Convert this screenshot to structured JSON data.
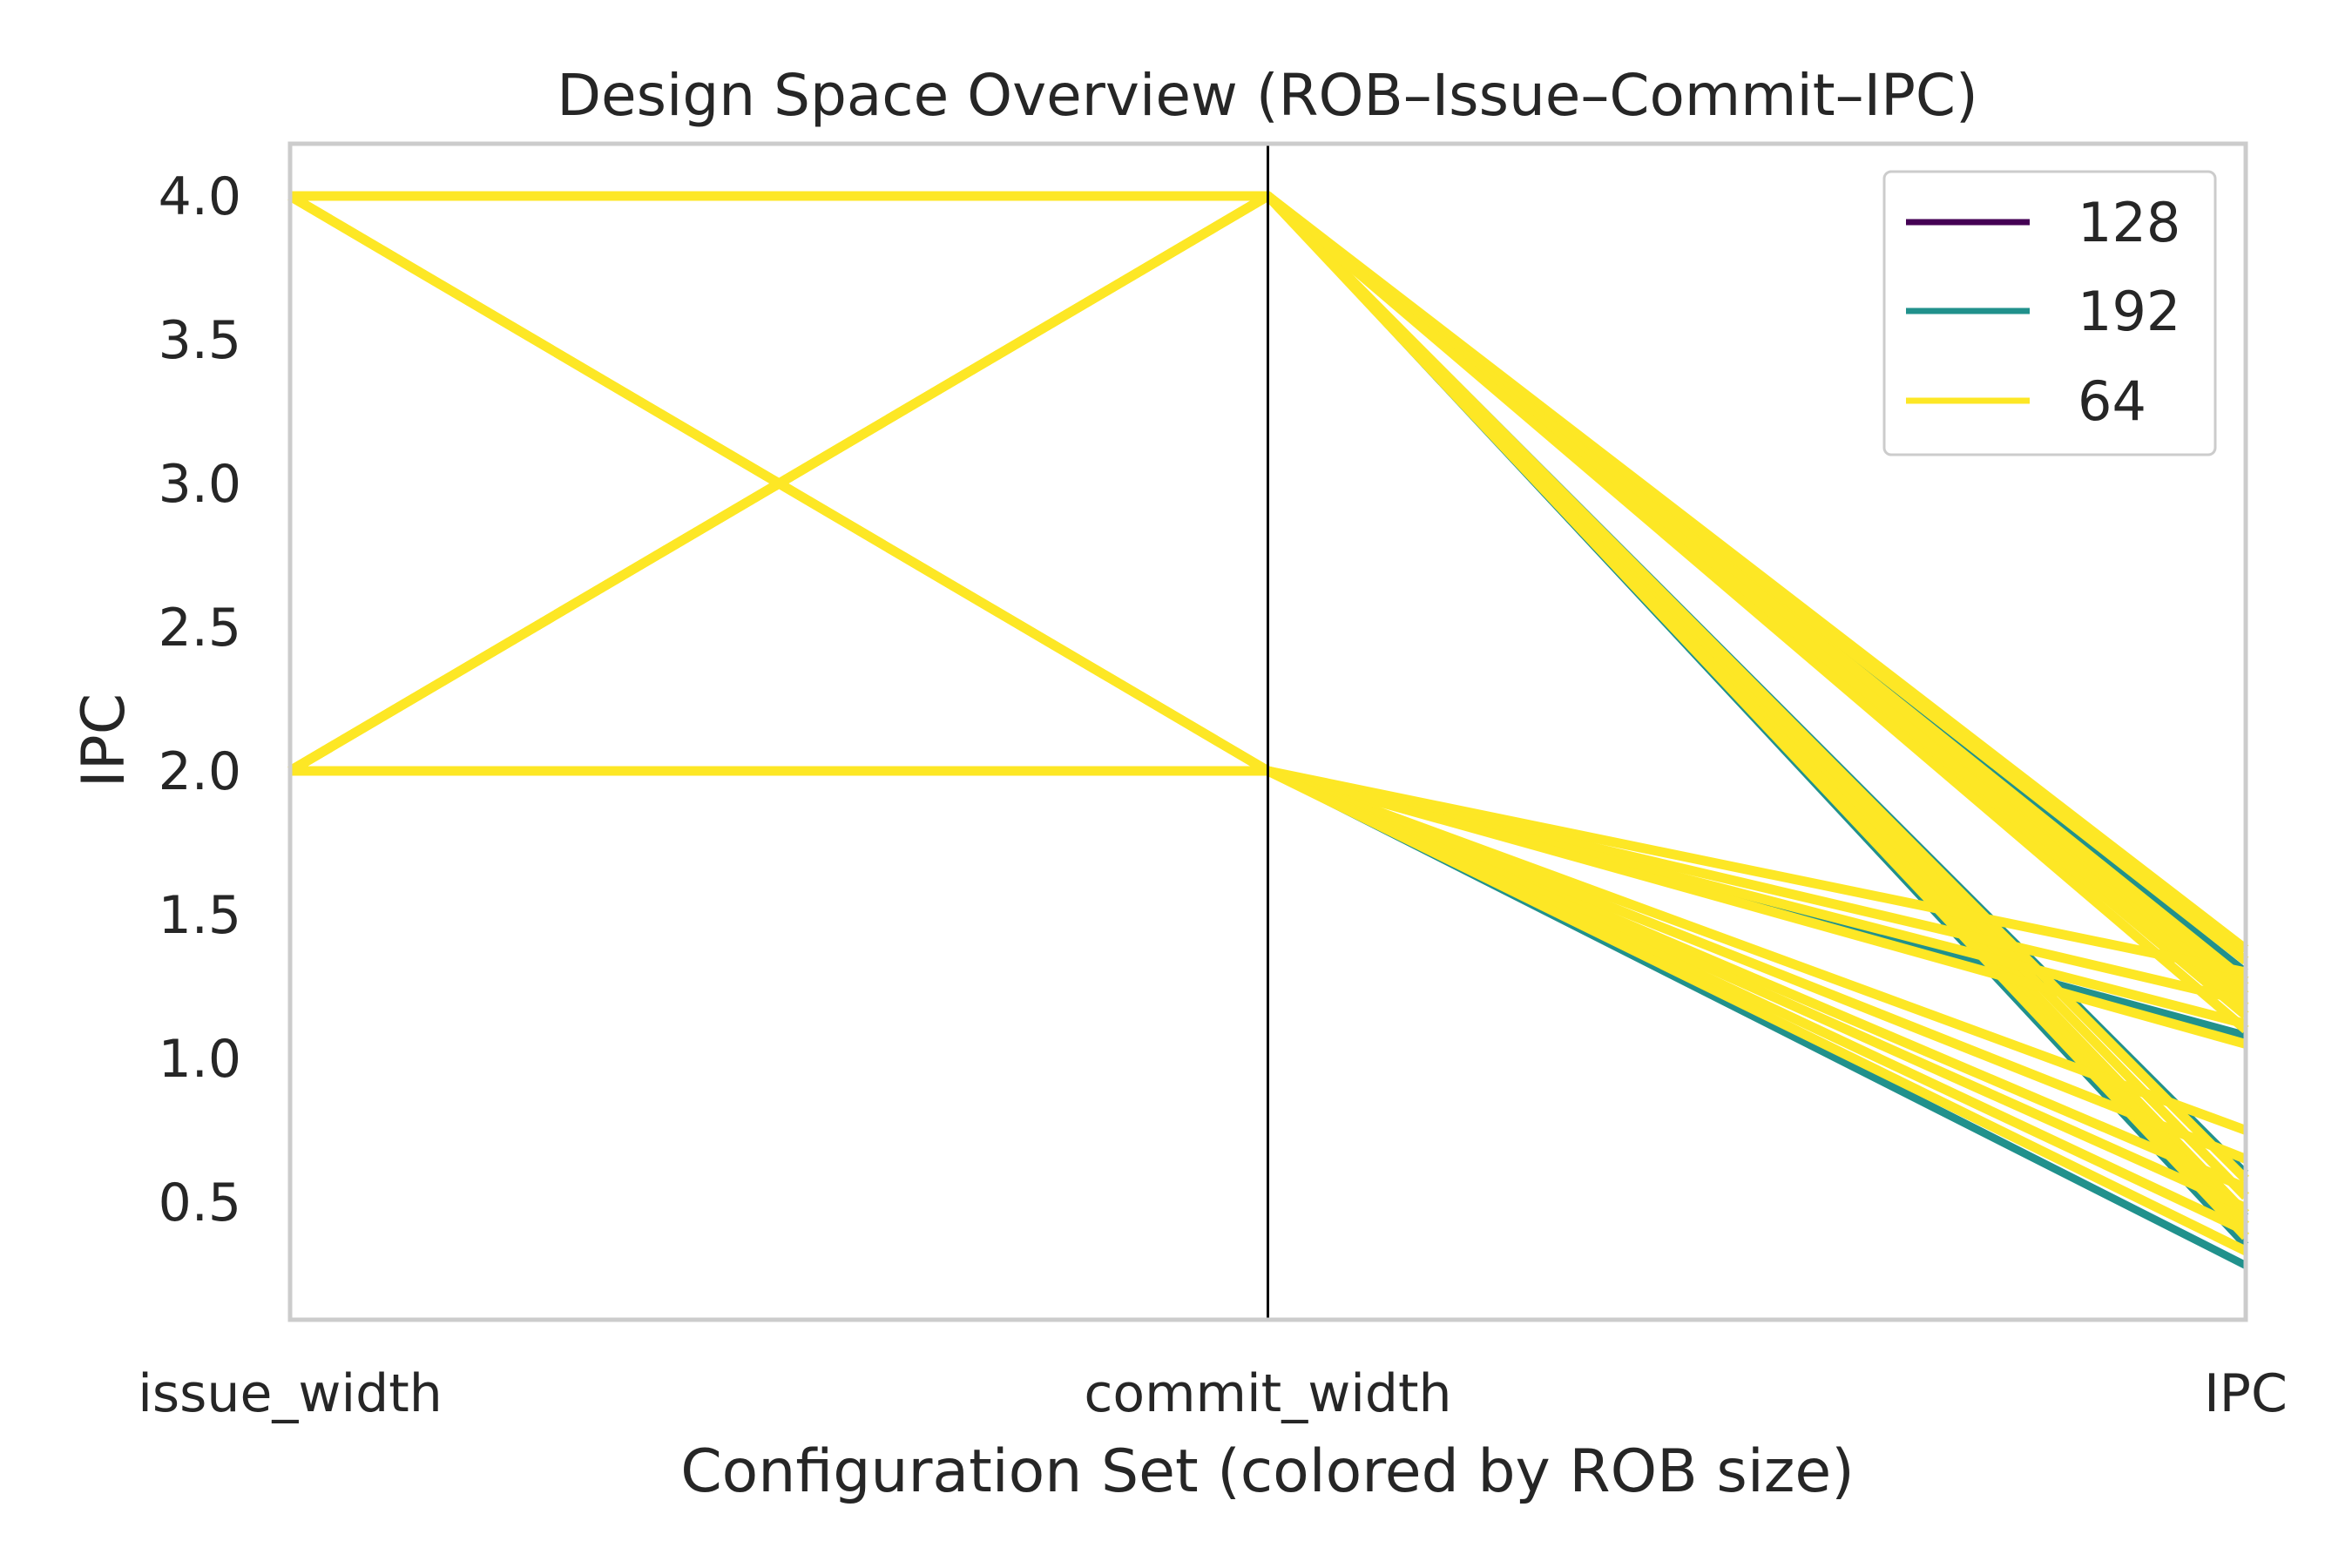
{
  "chart_data": {
    "type": "parallel-coordinates",
    "title": "Design Space Overview (ROB–Issue–Commit–IPC)",
    "xlabel": "Configuration Set (colored by ROB size)",
    "ylabel": "IPC",
    "axes": [
      "issue_width",
      "commit_width",
      "IPC"
    ],
    "yticks": [
      "0.5",
      "1.0",
      "1.5",
      "2.0",
      "2.5",
      "3.0",
      "3.5",
      "4.0"
    ],
    "ylim": [
      0.1,
      4.2
    ],
    "grid": false,
    "legend": {
      "placement": "top-right",
      "entries": [
        {
          "label": "128",
          "color": "#440154"
        },
        {
          "label": "192",
          "color": "#21918c"
        },
        {
          "label": "64",
          "color": "#fde725"
        }
      ]
    },
    "series": [
      {
        "rob": "192",
        "values": [
          4,
          4,
          1.3
        ]
      },
      {
        "rob": "192",
        "values": [
          4,
          4,
          1.18
        ]
      },
      {
        "rob": "192",
        "values": [
          4,
          4,
          0.6
        ]
      },
      {
        "rob": "192",
        "values": [
          4,
          4,
          0.45
        ]
      },
      {
        "rob": "192",
        "values": [
          2,
          4,
          0.35
        ]
      },
      {
        "rob": "192",
        "values": [
          2,
          2,
          0.28
        ]
      },
      {
        "rob": "192",
        "values": [
          2,
          2,
          1.08
        ]
      },
      {
        "rob": "64",
        "values": [
          4,
          4,
          1.38
        ]
      },
      {
        "rob": "64",
        "values": [
          4,
          4,
          1.34
        ]
      },
      {
        "rob": "64",
        "values": [
          4,
          4,
          1.27
        ]
      },
      {
        "rob": "64",
        "values": [
          4,
          4,
          1.22
        ]
      },
      {
        "rob": "64",
        "values": [
          4,
          4,
          1.15
        ]
      },
      {
        "rob": "64",
        "values": [
          4,
          4,
          0.58
        ]
      },
      {
        "rob": "64",
        "values": [
          4,
          4,
          0.52
        ]
      },
      {
        "rob": "64",
        "values": [
          4,
          4,
          0.46
        ]
      },
      {
        "rob": "64",
        "values": [
          2,
          4,
          1.25
        ]
      },
      {
        "rob": "64",
        "values": [
          2,
          4,
          1.18
        ]
      },
      {
        "rob": "64",
        "values": [
          2,
          4,
          1.1
        ]
      },
      {
        "rob": "64",
        "values": [
          2,
          4,
          0.42
        ]
      },
      {
        "rob": "64",
        "values": [
          2,
          4,
          0.38
        ]
      },
      {
        "rob": "64",
        "values": [
          4,
          2,
          1.3
        ]
      },
      {
        "rob": "64",
        "values": [
          4,
          2,
          1.2
        ]
      },
      {
        "rob": "64",
        "values": [
          4,
          2,
          0.55
        ]
      },
      {
        "rob": "64",
        "values": [
          2,
          2,
          1.12
        ]
      },
      {
        "rob": "64",
        "values": [
          2,
          2,
          1.05
        ]
      },
      {
        "rob": "64",
        "values": [
          2,
          2,
          0.75
        ]
      },
      {
        "rob": "64",
        "values": [
          2,
          2,
          0.65
        ]
      },
      {
        "rob": "64",
        "values": [
          2,
          2,
          0.48
        ]
      },
      {
        "rob": "64",
        "values": [
          2,
          2,
          0.4
        ]
      },
      {
        "rob": "64",
        "values": [
          2,
          2,
          0.33
        ]
      }
    ]
  }
}
